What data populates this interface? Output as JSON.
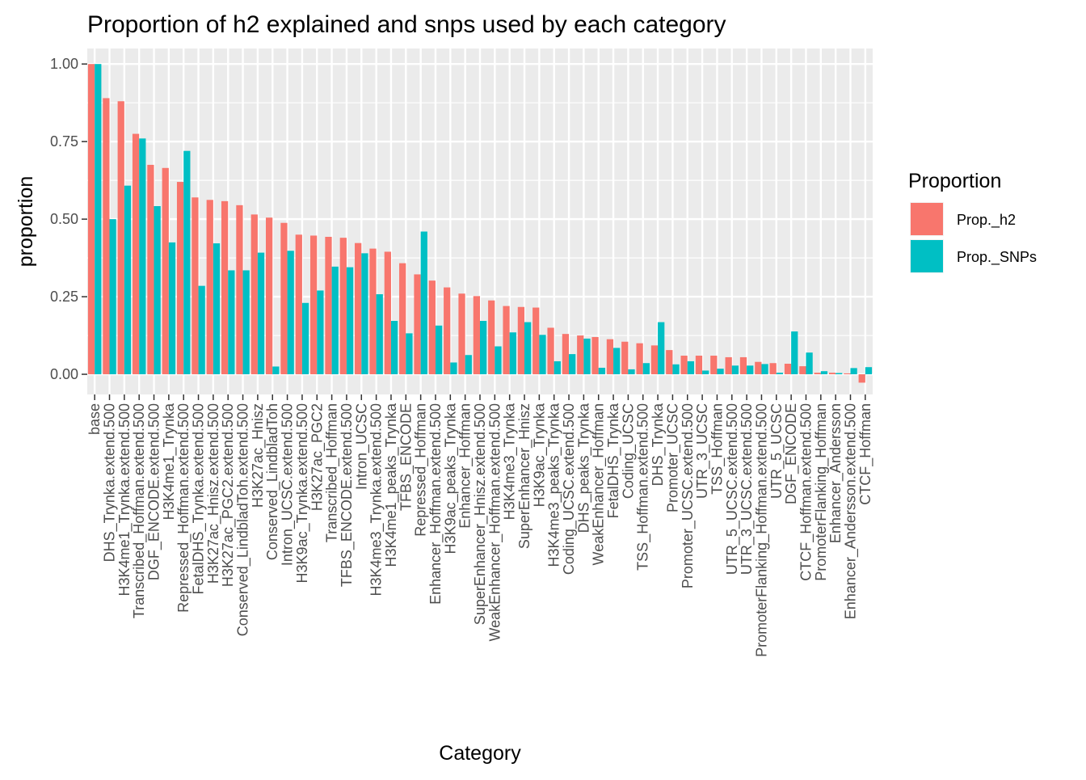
{
  "chart_data": {
    "type": "bar",
    "title": "Proportion of h2 explained and snps used by each category",
    "xlabel": "Category",
    "ylabel": "proportion",
    "ylim": [
      -0.065,
      1.05
    ],
    "yticks": [
      0.0,
      0.25,
      0.5,
      0.75,
      1.0
    ],
    "ytick_labels": [
      "0.00",
      "0.25",
      "0.50",
      "0.75",
      "1.00"
    ],
    "grid": true,
    "legend": {
      "title": "Proportion",
      "placement": "right"
    },
    "categories": [
      "base",
      "DHS_Trynka.extend.500",
      "H3K4me1_Trynka.extend.500",
      "Transcribed_Hoffman.extend.500",
      "DGF_ENCODE.extend.500",
      "H3K4me1_Trynka",
      "Repressed_Hoffman.extend.500",
      "FetalDHS_Trynka.extend.500",
      "H3K27ac_Hnisz.extend.500",
      "H3K27ac_PGC2.extend.500",
      "Conserved_LindbladToh.extend.500",
      "H3K27ac_Hnisz",
      "Conserved_LindbladToh",
      "Intron_UCSC.extend.500",
      "H3K9ac_Trynka.extend.500",
      "H3K27ac_PGC2",
      "Transcribed_Hoffman",
      "TFBS_ENCODE.extend.500",
      "Intron_UCSC",
      "H3K4me3_Trynka.extend.500",
      "H3K4me1_peaks_Trynka",
      "TFBS_ENCODE",
      "Repressed_Hoffman",
      "Enhancer_Hoffman.extend.500",
      "H3K9ac_peaks_Trynka",
      "Enhancer_Hoffman",
      "SuperEnhancer_Hnisz.extend.500",
      "WeakEnhancer_Hoffman.extend.500",
      "H3K4me3_Trynka",
      "SuperEnhancer_Hnisz",
      "H3K9ac_Trynka",
      "H3K4me3_peaks_Trynka",
      "Coding_UCSC.extend.500",
      "DHS_peaks_Trynka",
      "WeakEnhancer_Hoffman",
      "FetalDHS_Trynka",
      "Coding_UCSC",
      "TSS_Hoffman.extend.500",
      "DHS_Trynka",
      "Promoter_UCSC",
      "Promoter_UCSC.extend.500",
      "UTR_3_UCSC",
      "TSS_Hoffman",
      "UTR_5_UCSC.extend.500",
      "UTR_3_UCSC.extend.500",
      "PromoterFlanking_Hoffman.extend.500",
      "UTR_5_UCSC",
      "DGF_ENCODE",
      "CTCF_Hoffman.extend.500",
      "PromoterFlanking_Hoffman",
      "Enhancer_Andersson",
      "Enhancer_Andersson.extend.500",
      "CTCF_Hoffman"
    ],
    "series": [
      {
        "name": "Prop._h2",
        "color": "#F8766D",
        "values": [
          1.0,
          0.89,
          0.88,
          0.775,
          0.675,
          0.665,
          0.62,
          0.57,
          0.562,
          0.558,
          0.545,
          0.515,
          0.505,
          0.488,
          0.45,
          0.447,
          0.443,
          0.44,
          0.423,
          0.405,
          0.395,
          0.358,
          0.322,
          0.302,
          0.28,
          0.26,
          0.252,
          0.238,
          0.22,
          0.217,
          0.215,
          0.15,
          0.13,
          0.125,
          0.12,
          0.113,
          0.105,
          0.1,
          0.093,
          0.078,
          0.06,
          0.06,
          0.06,
          0.055,
          0.055,
          0.04,
          0.036,
          0.034,
          0.026,
          0.005,
          0.005,
          0.003,
          -0.027
        ]
      },
      {
        "name": "Prop._SNPs",
        "color": "#00BFC4",
        "values": [
          1.0,
          0.5,
          0.608,
          0.76,
          0.542,
          0.425,
          0.72,
          0.285,
          0.422,
          0.335,
          0.335,
          0.392,
          0.025,
          0.398,
          0.23,
          0.27,
          0.347,
          0.345,
          0.39,
          0.258,
          0.172,
          0.132,
          0.46,
          0.157,
          0.038,
          0.062,
          0.172,
          0.09,
          0.135,
          0.168,
          0.127,
          0.042,
          0.065,
          0.115,
          0.021,
          0.085,
          0.016,
          0.036,
          0.168,
          0.032,
          0.042,
          0.012,
          0.018,
          0.028,
          0.028,
          0.033,
          0.005,
          0.138,
          0.07,
          0.01,
          0.004,
          0.02,
          0.023
        ]
      }
    ]
  }
}
